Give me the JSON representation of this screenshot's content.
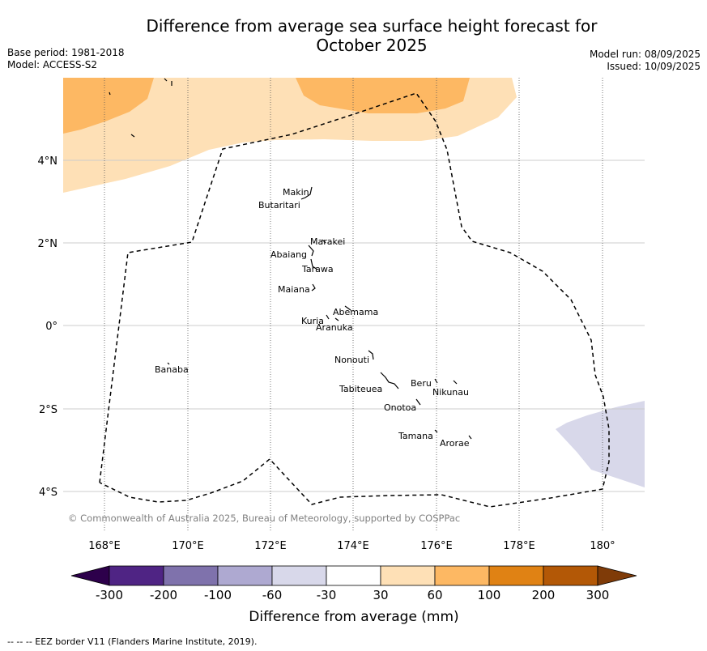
{
  "title_line1": "Difference from average sea surface height forecast for",
  "title_line2": "October 2025",
  "base_period": "Base period: 1981-2018",
  "model": "Model: ACCESS-S2",
  "model_run": "Model run: 08/09/2025",
  "issued": "Issued: 10/09/2025",
  "copyright": "© Commonwealth of Australia 2025, Bureau of Meteorology, supported by COSPPac",
  "footer": "-- -- -- EEZ border V11 (Flanders Marine Institute, 2019).",
  "map": {
    "lon_ticks": [
      "168°E",
      "170°E",
      "172°E",
      "174°E",
      "176°E",
      "178°E",
      "180°"
    ],
    "lat_ticks": [
      "4°N",
      "2°N",
      "0°",
      "2°S",
      "4°S"
    ],
    "islands": [
      {
        "name": "Makin"
      },
      {
        "name": "Butaritari"
      },
      {
        "name": "Marakei"
      },
      {
        "name": "Abaiang"
      },
      {
        "name": "Tarawa"
      },
      {
        "name": "Maiana"
      },
      {
        "name": "Abemama"
      },
      {
        "name": "Kuria"
      },
      {
        "name": "Aranuka"
      },
      {
        "name": "Nonouti"
      },
      {
        "name": "Banaba"
      },
      {
        "name": "Beru"
      },
      {
        "name": "Nikunau"
      },
      {
        "name": "Tabiteuea"
      },
      {
        "name": "Onotoa"
      },
      {
        "name": "Tamana"
      },
      {
        "name": "Arorae"
      }
    ]
  },
  "colorbar": {
    "label": "Difference from average (mm)",
    "ticks": [
      "-300",
      "-200",
      "-100",
      "-60",
      "-30",
      "30",
      "60",
      "100",
      "200",
      "300"
    ],
    "colors": [
      "#4f2484",
      "#7f72ac",
      "#aea9d1",
      "#d8d8ea",
      "#ffffff",
      "#fee0b6",
      "#fdb863",
      "#e08214",
      "#b35806"
    ],
    "under_color": "#2d004b",
    "over_color": "#7f3b08"
  }
}
